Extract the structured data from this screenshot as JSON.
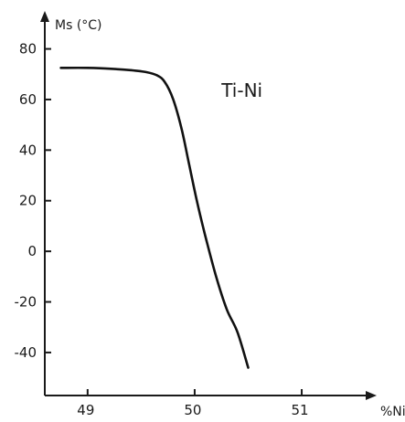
{
  "chart_data": {
    "type": "line",
    "title": "",
    "xlabel": "%Ni",
    "ylabel": "Ms (°C)",
    "xlim": [
      48.6,
      51.7
    ],
    "ylim": [
      -57,
      95
    ],
    "x_ticks": [
      49,
      50,
      51
    ],
    "x_tick_labels": [
      "49",
      "50",
      "51"
    ],
    "y_ticks": [
      80,
      60,
      40,
      20,
      0,
      -20,
      -40
    ],
    "y_tick_labels": [
      "80",
      "60",
      "40",
      "20",
      "0",
      "-20",
      "-40"
    ],
    "grid": false,
    "annotations": [
      {
        "text": "Ti-Ni",
        "x": 50.25,
        "y": 61
      }
    ],
    "series": [
      {
        "x": [
          48.75,
          49.0,
          49.2,
          49.4,
          49.55,
          49.65,
          49.72,
          49.8,
          49.88,
          49.95,
          50.02,
          50.1,
          50.2,
          50.3,
          50.4,
          50.5
        ],
        "y": [
          72.5,
          72.5,
          72.2,
          71.6,
          70.8,
          69.5,
          67.0,
          60.0,
          48.0,
          34.0,
          20.0,
          6.0,
          -10.0,
          -23.0,
          -32.0,
          -46.0
        ]
      }
    ]
  }
}
